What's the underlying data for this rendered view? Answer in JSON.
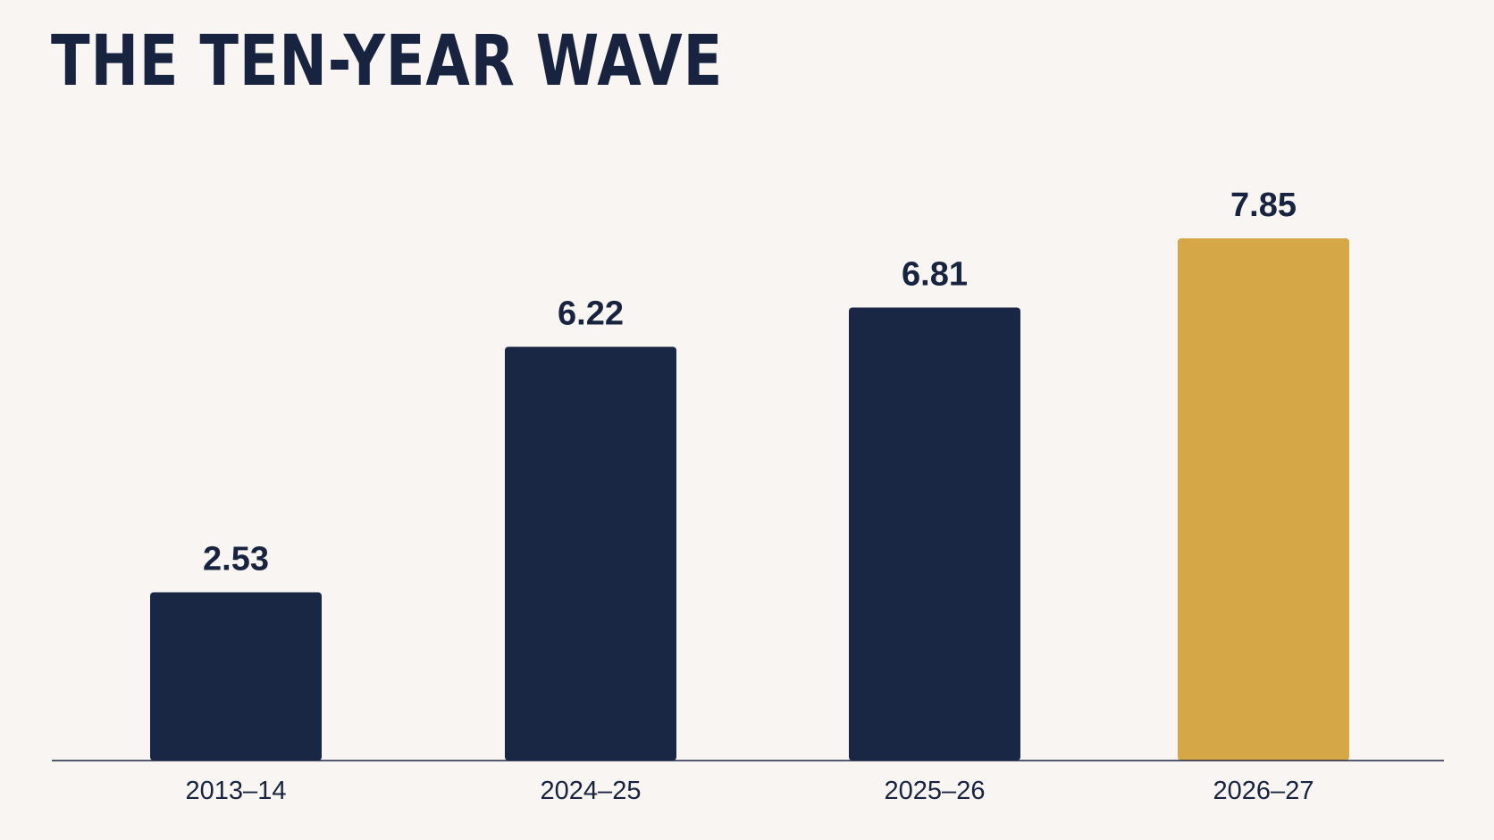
{
  "chart_data": {
    "type": "bar",
    "title": "THE TEN-YEAR WAVE",
    "categories": [
      "2013–14",
      "2024–25",
      "2025–26",
      "2026–27"
    ],
    "values": [
      2.53,
      6.22,
      6.81,
      7.85
    ],
    "value_labels": [
      "2.53",
      "6.22",
      "6.81",
      "7.85"
    ],
    "xlabel": "",
    "ylabel": "",
    "ylim": [
      0,
      9.2
    ],
    "grid": false,
    "legend": "none",
    "highlight_index": 3,
    "colors": {
      "bar": "#1a2744",
      "highlight": "#d6a747",
      "text": "#17233f",
      "axis": "#1a2744",
      "background": "#f8f5f2"
    }
  }
}
